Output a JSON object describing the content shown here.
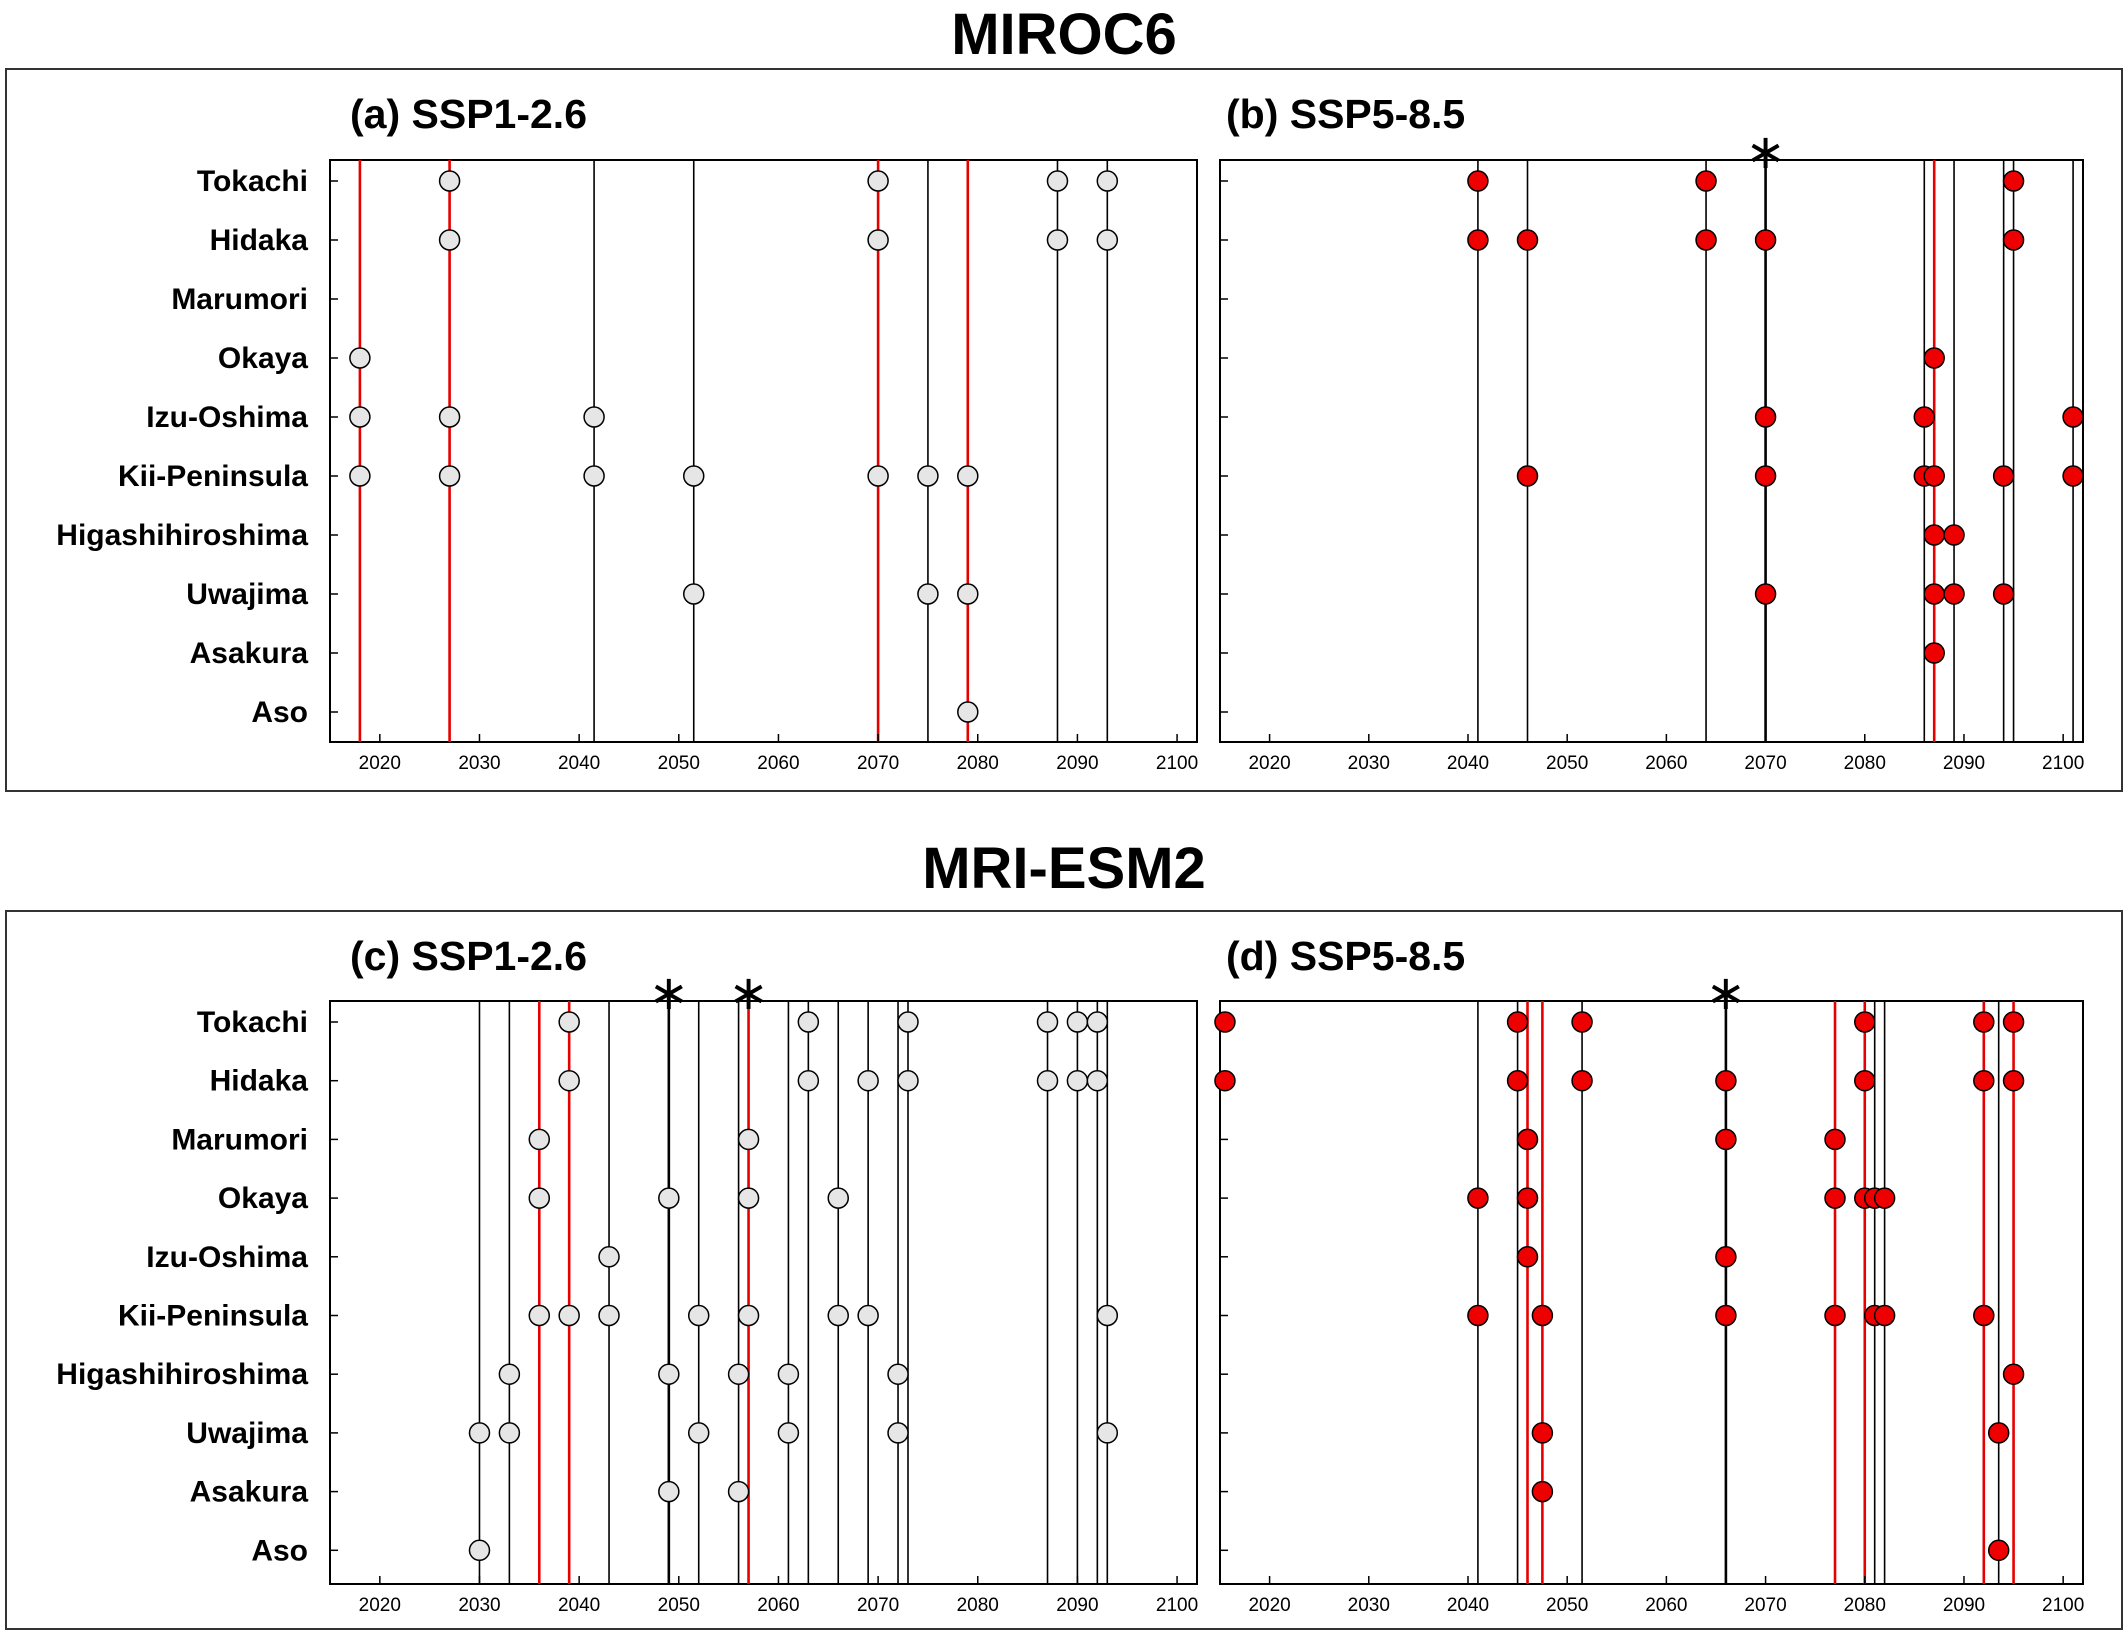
{
  "models": [
    {
      "title": "MIROC6"
    },
    {
      "title": "MRI-ESM2"
    }
  ],
  "colors": {
    "ssp126_marker": "#e6e6e6",
    "ssp585_marker": "#ee0000",
    "highlight_line": "#e60000",
    "event_line": "#000000"
  },
  "chart_data": [
    {
      "type": "scatter",
      "model": "MIROC6",
      "title": "(a) SSP1-2.6",
      "categories": [
        "Tokachi",
        "Hidaka",
        "Marumori",
        "Okaya",
        "Izu-Oshima",
        "Kii-Peninsula",
        "Higashihiroshima",
        "Uwajima",
        "Asakura",
        "Aso"
      ],
      "xlim": [
        2015,
        2102
      ],
      "xticks": [
        2020,
        2030,
        2040,
        2050,
        2060,
        2070,
        2080,
        2090,
        2100
      ],
      "marker_color": "#e6e6e6",
      "red_lines": [
        2018,
        2027,
        2070,
        2079
      ],
      "black_lines": [
        2041.5,
        2051.5,
        2075,
        2088,
        2093
      ],
      "asterisks": [],
      "points": {
        "Tokachi": [
          2027,
          2070,
          2088,
          2093
        ],
        "Hidaka": [
          2027,
          2070,
          2088,
          2093
        ],
        "Marumori": [],
        "Okaya": [
          2018
        ],
        "Izu-Oshima": [
          2018,
          2027,
          2041.5
        ],
        "Kii-Peninsula": [
          2018,
          2027,
          2041.5,
          2051.5,
          2070,
          2075,
          2079
        ],
        "Higashihiroshima": [],
        "Uwajima": [
          2051.5,
          2075,
          2079
        ],
        "Asakura": [],
        "Aso": [
          2079
        ]
      }
    },
    {
      "type": "scatter",
      "model": "MIROC6",
      "title": "(b) SSP5-8.5",
      "categories": [
        "Tokachi",
        "Hidaka",
        "Marumori",
        "Okaya",
        "Izu-Oshima",
        "Kii-Peninsula",
        "Higashihiroshima",
        "Uwajima",
        "Asakura",
        "Aso"
      ],
      "xlim": [
        2015,
        2102
      ],
      "xticks": [
        2020,
        2030,
        2040,
        2050,
        2060,
        2070,
        2080,
        2090,
        2100
      ],
      "marker_color": "#ee0000",
      "red_lines": [
        2087
      ],
      "black_lines": [
        2041,
        2046,
        2064,
        2070,
        2086,
        2089,
        2094,
        2095,
        2101
      ],
      "asterisks": [
        2070
      ],
      "points": {
        "Tokachi": [
          2041,
          2064,
          2095
        ],
        "Hidaka": [
          2041,
          2046,
          2064,
          2070,
          2095
        ],
        "Marumori": [],
        "Okaya": [
          2087
        ],
        "Izu-Oshima": [
          2070,
          2086,
          2101
        ],
        "Kii-Peninsula": [
          2046,
          2070,
          2086,
          2087,
          2094,
          2101
        ],
        "Higashihiroshima": [
          2087,
          2089
        ],
        "Uwajima": [
          2070,
          2087,
          2089,
          2094
        ],
        "Asakura": [
          2087
        ],
        "Aso": []
      }
    },
    {
      "type": "scatter",
      "model": "MRI-ESM2",
      "title": "(c) SSP1-2.6",
      "categories": [
        "Tokachi",
        "Hidaka",
        "Marumori",
        "Okaya",
        "Izu-Oshima",
        "Kii-Peninsula",
        "Higashihiroshima",
        "Uwajima",
        "Asakura",
        "Aso"
      ],
      "xlim": [
        2015,
        2102
      ],
      "xticks": [
        2020,
        2030,
        2040,
        2050,
        2060,
        2070,
        2080,
        2090,
        2100
      ],
      "marker_color": "#e6e6e6",
      "red_lines": [
        2036,
        2039,
        2057
      ],
      "black_lines": [
        2030,
        2033,
        2043,
        2049,
        2052,
        2056,
        2061,
        2063,
        2066,
        2069,
        2072,
        2073,
        2087,
        2090,
        2092,
        2093
      ],
      "asterisks": [
        2049,
        2057
      ],
      "points": {
        "Tokachi": [
          2039,
          2063,
          2073,
          2087,
          2090,
          2092
        ],
        "Hidaka": [
          2039,
          2063,
          2069,
          2073,
          2087,
          2090,
          2092
        ],
        "Marumori": [
          2036,
          2057
        ],
        "Okaya": [
          2036,
          2049,
          2057,
          2066
        ],
        "Izu-Oshima": [
          2043
        ],
        "Kii-Peninsula": [
          2036,
          2039,
          2043,
          2052,
          2057,
          2066,
          2069,
          2093
        ],
        "Higashihiroshima": [
          2033,
          2049,
          2056,
          2061,
          2072
        ],
        "Uwajima": [
          2030,
          2033,
          2052,
          2061,
          2072,
          2093
        ],
        "Asakura": [
          2049,
          2056
        ],
        "Aso": [
          2030
        ]
      }
    },
    {
      "type": "scatter",
      "model": "MRI-ESM2",
      "title": "(d) SSP5-8.5",
      "categories": [
        "Tokachi",
        "Hidaka",
        "Marumori",
        "Okaya",
        "Izu-Oshima",
        "Kii-Peninsula",
        "Higashihiroshima",
        "Uwajima",
        "Asakura",
        "Aso"
      ],
      "xlim": [
        2015,
        2102
      ],
      "xticks": [
        2020,
        2030,
        2040,
        2050,
        2060,
        2070,
        2080,
        2090,
        2100
      ],
      "marker_color": "#ee0000",
      "red_lines": [
        2046,
        2047.5,
        2077,
        2080,
        2092,
        2095
      ],
      "black_lines": [
        2041,
        2045,
        2051.5,
        2066,
        2081,
        2082,
        2093.5
      ],
      "asterisks": [
        2066
      ],
      "points": {
        "Tokachi": [
          2015.5,
          2045,
          2051.5,
          2080,
          2092,
          2095
        ],
        "Hidaka": [
          2015.5,
          2045,
          2051.5,
          2066,
          2080,
          2092,
          2095
        ],
        "Marumori": [
          2046,
          2066,
          2077
        ],
        "Okaya": [
          2041,
          2046,
          2077,
          2080,
          2081,
          2082
        ],
        "Izu-Oshima": [
          2046,
          2066
        ],
        "Kii-Peninsula": [
          2041,
          2047.5,
          2066,
          2077,
          2081,
          2082,
          2092
        ],
        "Higashihiroshima": [
          2095
        ],
        "Uwajima": [
          2047.5,
          2093.5
        ],
        "Asakura": [
          2047.5
        ],
        "Aso": [
          2093.5
        ]
      }
    }
  ]
}
